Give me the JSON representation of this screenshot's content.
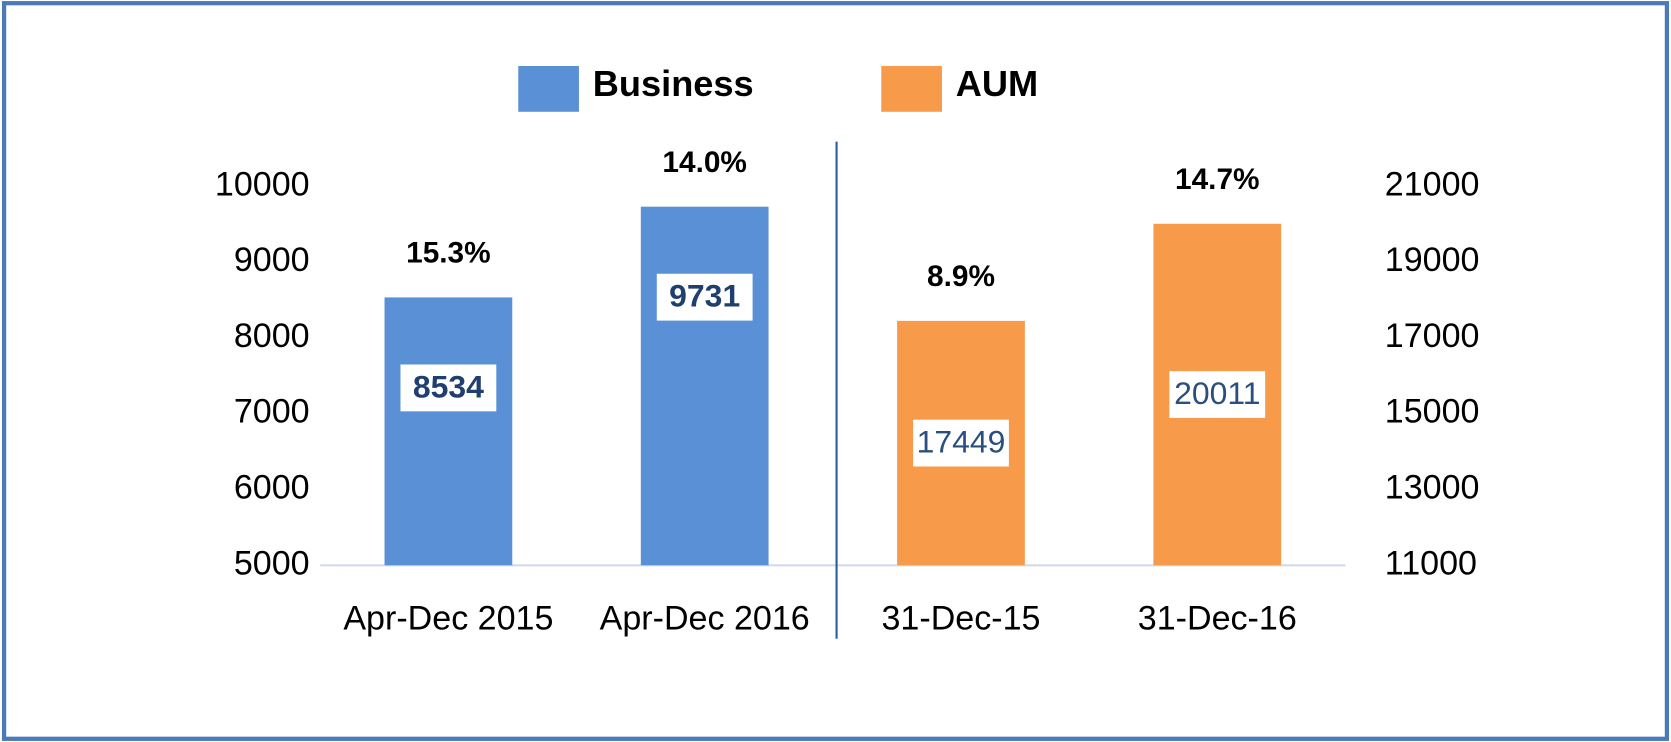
{
  "chart_data": {
    "type": "bar",
    "categories": [
      "Apr-Dec 2015",
      "Apr-Dec 2016",
      "31-Dec-15",
      "31-Dec-16"
    ],
    "series": [
      {
        "name": "Business",
        "color": "#5a90d6",
        "values": [
          8534,
          9731,
          null,
          null
        ],
        "annotations": [
          "15.3%",
          "14.0%",
          null,
          null
        ]
      },
      {
        "name": "AUM",
        "color": "#f79a4a",
        "axis": "y2",
        "values": [
          null,
          null,
          17449,
          20011
        ],
        "annotations": [
          null,
          null,
          "8.9%",
          "14.7%"
        ]
      }
    ],
    "ylim": [
      5000,
      10000
    ],
    "yticks": [
      5000,
      6000,
      7000,
      8000,
      9000,
      10000
    ],
    "y2lim": [
      11000,
      21000
    ],
    "y2ticks": [
      11000,
      13000,
      15000,
      17000,
      19000,
      21000
    ],
    "grid": false,
    "legend": "top"
  }
}
